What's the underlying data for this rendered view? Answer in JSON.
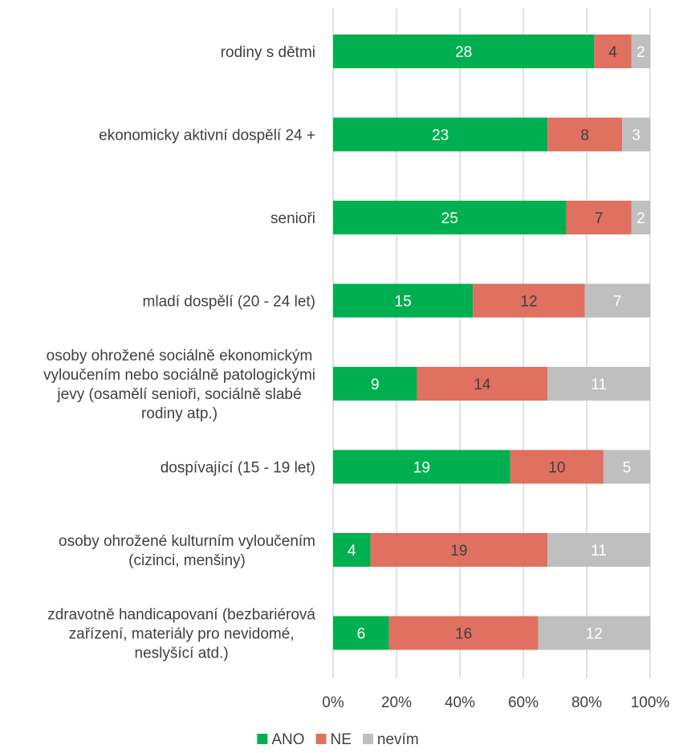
{
  "chart_data": {
    "type": "bar",
    "orientation": "horizontal",
    "stacking": "percent",
    "categories": [
      [
        "rodiny s dětmi"
      ],
      [
        "ekonomicky aktivní dospělí 24 +"
      ],
      [
        "senioři"
      ],
      [
        "mladí dospělí (20 - 24 let)"
      ],
      [
        "osoby ohrožené sociálně ekonomickým",
        "vyloučením nebo sociálně patologickými",
        "jevy (osamělí senioři, sociálně slabé",
        "rodiny atp.)"
      ],
      [
        "dospívající (15 - 19 let)"
      ],
      [
        "osoby ohrožené kulturním vyloučením",
        "(cizinci,  menšiny)"
      ],
      [
        "zdravotně handicapovaní (bezbariérová",
        "zařízení, materiály pro nevidomé,",
        "neslyšící atd.)"
      ]
    ],
    "series": [
      {
        "name": "ANO",
        "color": "#00b050",
        "label_color": "#ffffff",
        "values": [
          28,
          23,
          25,
          15,
          9,
          19,
          4,
          6
        ]
      },
      {
        "name": "NE",
        "color": "#e07060",
        "label_color": "#404040",
        "values": [
          4,
          8,
          7,
          12,
          14,
          10,
          19,
          16
        ]
      },
      {
        "name": "nevím",
        "color": "#bfbfbf",
        "label_color": "#ffffff",
        "values": [
          2,
          3,
          2,
          7,
          11,
          5,
          11,
          12
        ]
      }
    ],
    "x_ticks": [
      "0%",
      "20%",
      "40%",
      "60%",
      "80%",
      "100%"
    ],
    "xlim": [
      0,
      100
    ],
    "grid": true,
    "legend_position": "bottom",
    "gridline_color": "#d9d9d9"
  }
}
